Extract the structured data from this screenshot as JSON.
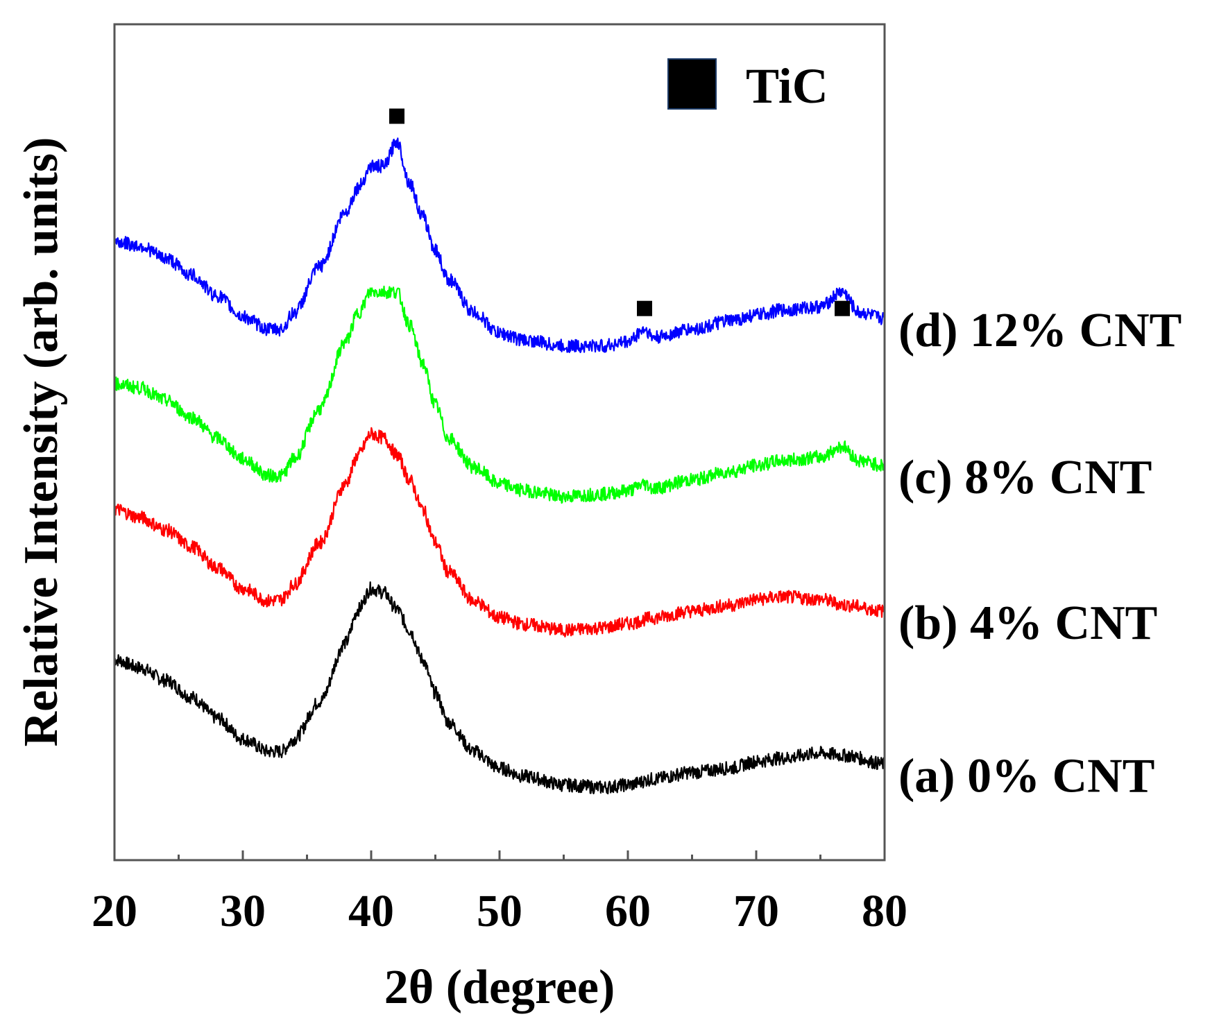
{
  "chart_data": {
    "type": "line",
    "title": "",
    "xlabel": "2θ (degree)",
    "ylabel": "Relative Intensity (arb. units)",
    "xlim": [
      20,
      80
    ],
    "ylim": [
      0,
      10
    ],
    "x_ticks": [
      20,
      30,
      40,
      50,
      60,
      70,
      80
    ],
    "grid": false,
    "legend": {
      "entries": [
        {
          "marker": "square",
          "color": "#000000",
          "label": "TiC"
        }
      ],
      "position": "top-right"
    },
    "markers": [
      {
        "label": "TiC",
        "x": 42,
        "y": 8.9
      },
      {
        "label": "TiC",
        "x": 61.3,
        "y": 6.6
      },
      {
        "label": "TiC",
        "x": 76.7,
        "y": 6.6
      }
    ],
    "series": [
      {
        "name": "(a) 0% CNT",
        "color": "#000000",
        "x": [
          20,
          22,
          24,
          26,
          28,
          30,
          32,
          33,
          34,
          36,
          38,
          39,
          40,
          41,
          42,
          43,
          44,
          45,
          46,
          48,
          50,
          52,
          55,
          58,
          60,
          62,
          65,
          68,
          70,
          72,
          75,
          77,
          80
        ],
        "y": [
          2.4,
          2.3,
          2.15,
          1.95,
          1.7,
          1.45,
          1.3,
          1.3,
          1.45,
          1.9,
          2.6,
          3.0,
          3.25,
          3.2,
          3.0,
          2.75,
          2.4,
          2.0,
          1.65,
          1.3,
          1.1,
          1.0,
          0.9,
          0.87,
          0.9,
          0.97,
          1.05,
          1.1,
          1.18,
          1.22,
          1.28,
          1.25,
          1.15
        ]
      },
      {
        "name": "(b) 4% CNT",
        "color": "#ff0000",
        "x": [
          20,
          22,
          24,
          26,
          28,
          30,
          32,
          33,
          34,
          36,
          38,
          39,
          40,
          41,
          42,
          43,
          44,
          45,
          46,
          48,
          50,
          52,
          55,
          58,
          60,
          62,
          65,
          68,
          70,
          72,
          75,
          77,
          80
        ],
        "y": [
          4.2,
          4.1,
          3.95,
          3.75,
          3.5,
          3.25,
          3.1,
          3.12,
          3.3,
          3.8,
          4.5,
          4.85,
          5.1,
          5.05,
          4.85,
          4.55,
          4.2,
          3.8,
          3.45,
          3.1,
          2.9,
          2.82,
          2.75,
          2.78,
          2.83,
          2.9,
          2.98,
          3.05,
          3.12,
          3.15,
          3.12,
          3.05,
          2.98
        ]
      },
      {
        "name": "(c) 8% CNT",
        "color": "#00ff00",
        "x": [
          20,
          22,
          24,
          26,
          28,
          30,
          32,
          33,
          34,
          36,
          38,
          39,
          40,
          41,
          42,
          43,
          44,
          45,
          46,
          48,
          50,
          52,
          55,
          58,
          60,
          61.3,
          62,
          65,
          68,
          70,
          72,
          75,
          76.7,
          78,
          80
        ],
        "y": [
          5.7,
          5.65,
          5.5,
          5.3,
          5.05,
          4.8,
          4.6,
          4.6,
          4.8,
          5.4,
          6.2,
          6.55,
          6.8,
          6.8,
          6.8,
          6.4,
          5.95,
          5.45,
          5.05,
          4.7,
          4.5,
          4.42,
          4.35,
          4.38,
          4.42,
          4.5,
          4.45,
          4.55,
          4.65,
          4.72,
          4.78,
          4.82,
          4.95,
          4.78,
          4.72
        ]
      },
      {
        "name": "(d) 12% CNT",
        "color": "#0000ff",
        "x": [
          20,
          22,
          24,
          26,
          28,
          30,
          32,
          33,
          34,
          36,
          38,
          39,
          40,
          41,
          42,
          43,
          44,
          45,
          46,
          48,
          50,
          52,
          55,
          58,
          60,
          61.3,
          62,
          65,
          68,
          70,
          72,
          75,
          76.7,
          78,
          80
        ],
        "y": [
          7.4,
          7.35,
          7.2,
          7.0,
          6.75,
          6.5,
          6.35,
          6.35,
          6.55,
          7.1,
          7.75,
          8.05,
          8.3,
          8.3,
          8.6,
          8.1,
          7.7,
          7.3,
          6.95,
          6.55,
          6.3,
          6.22,
          6.15,
          6.15,
          6.2,
          6.35,
          6.25,
          6.35,
          6.45,
          6.52,
          6.58,
          6.62,
          6.8,
          6.55,
          6.48
        ]
      }
    ]
  }
}
